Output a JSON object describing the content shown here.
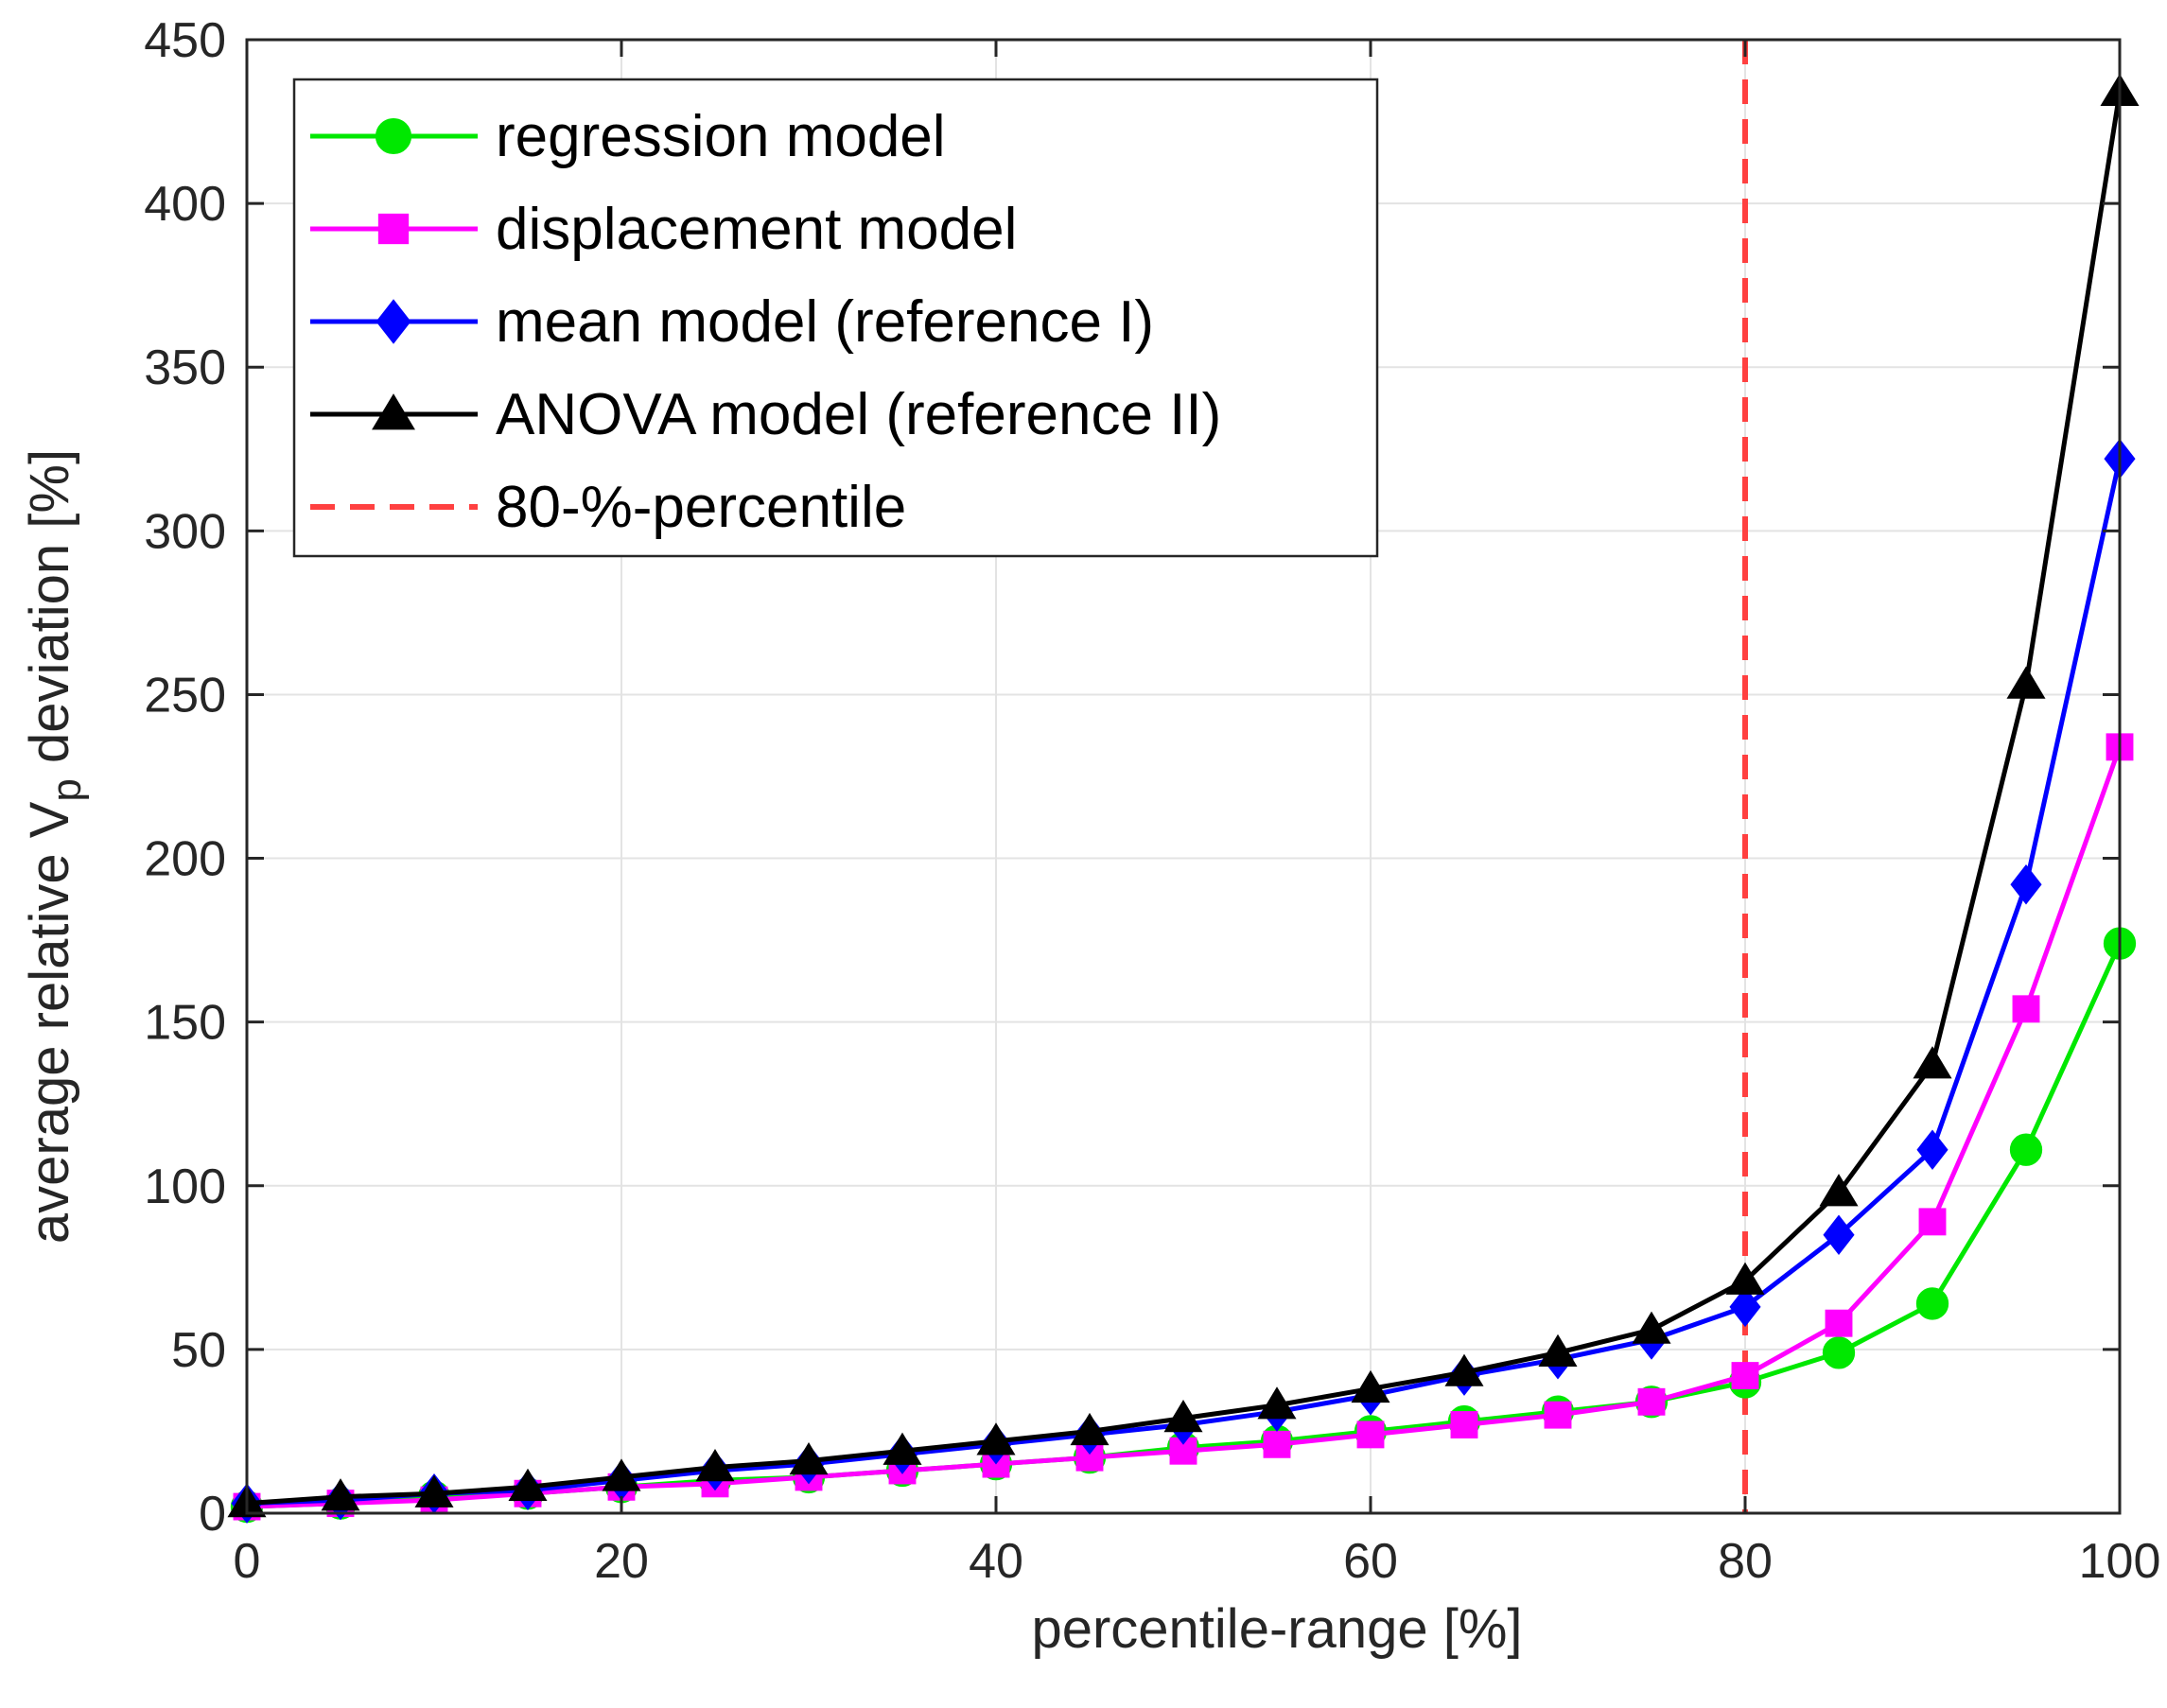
{
  "chart_data": {
    "type": "line",
    "title": "",
    "xlabel": "percentile-range [%]",
    "ylabel": {
      "before": "average relative V",
      "subscript": "p",
      "after": " deviation [%]"
    },
    "xlim": [
      0,
      100
    ],
    "ylim": [
      0,
      450
    ],
    "xticks": [
      0,
      20,
      40,
      60,
      80,
      100
    ],
    "yticks": [
      0,
      50,
      100,
      150,
      200,
      250,
      300,
      350,
      400,
      450
    ],
    "grid": true,
    "x": [
      0,
      5,
      10,
      15,
      20,
      25,
      30,
      35,
      40,
      45,
      50,
      55,
      60,
      65,
      70,
      75,
      80,
      85,
      90,
      95,
      100
    ],
    "series": [
      {
        "name": "regression model",
        "color": "#00e800",
        "marker": "circle",
        "values": [
          2,
          3,
          5,
          6,
          8,
          10,
          11,
          13,
          15,
          17,
          20,
          22,
          25,
          28,
          31,
          34,
          40,
          49,
          64,
          111,
          174
        ]
      },
      {
        "name": "displacement model",
        "color": "#ff00ff",
        "marker": "square",
        "values": [
          2,
          3,
          4,
          6,
          8,
          9,
          11,
          13,
          15,
          17,
          19,
          21,
          24,
          27,
          30,
          34,
          42,
          58,
          89,
          154,
          234
        ]
      },
      {
        "name": "mean model (reference I)",
        "color": "#0000ff",
        "marker": "diamond",
        "values": [
          3,
          4,
          6,
          7,
          10,
          13,
          15,
          18,
          21,
          24,
          27,
          31,
          36,
          42,
          47,
          53,
          63,
          85,
          111,
          192,
          322
        ]
      },
      {
        "name": "ANOVA model (reference II)",
        "color": "#000000",
        "marker": "triangle",
        "values": [
          3,
          5,
          6,
          8,
          11,
          14,
          16,
          19,
          22,
          25,
          29,
          33,
          38,
          43,
          49,
          56,
          71,
          98,
          137,
          253,
          434
        ]
      }
    ],
    "reference_line": {
      "name": "80-%-percentile",
      "x": 80,
      "color": "#ff4040",
      "style": "dashed"
    },
    "legend_position": "top-left"
  }
}
